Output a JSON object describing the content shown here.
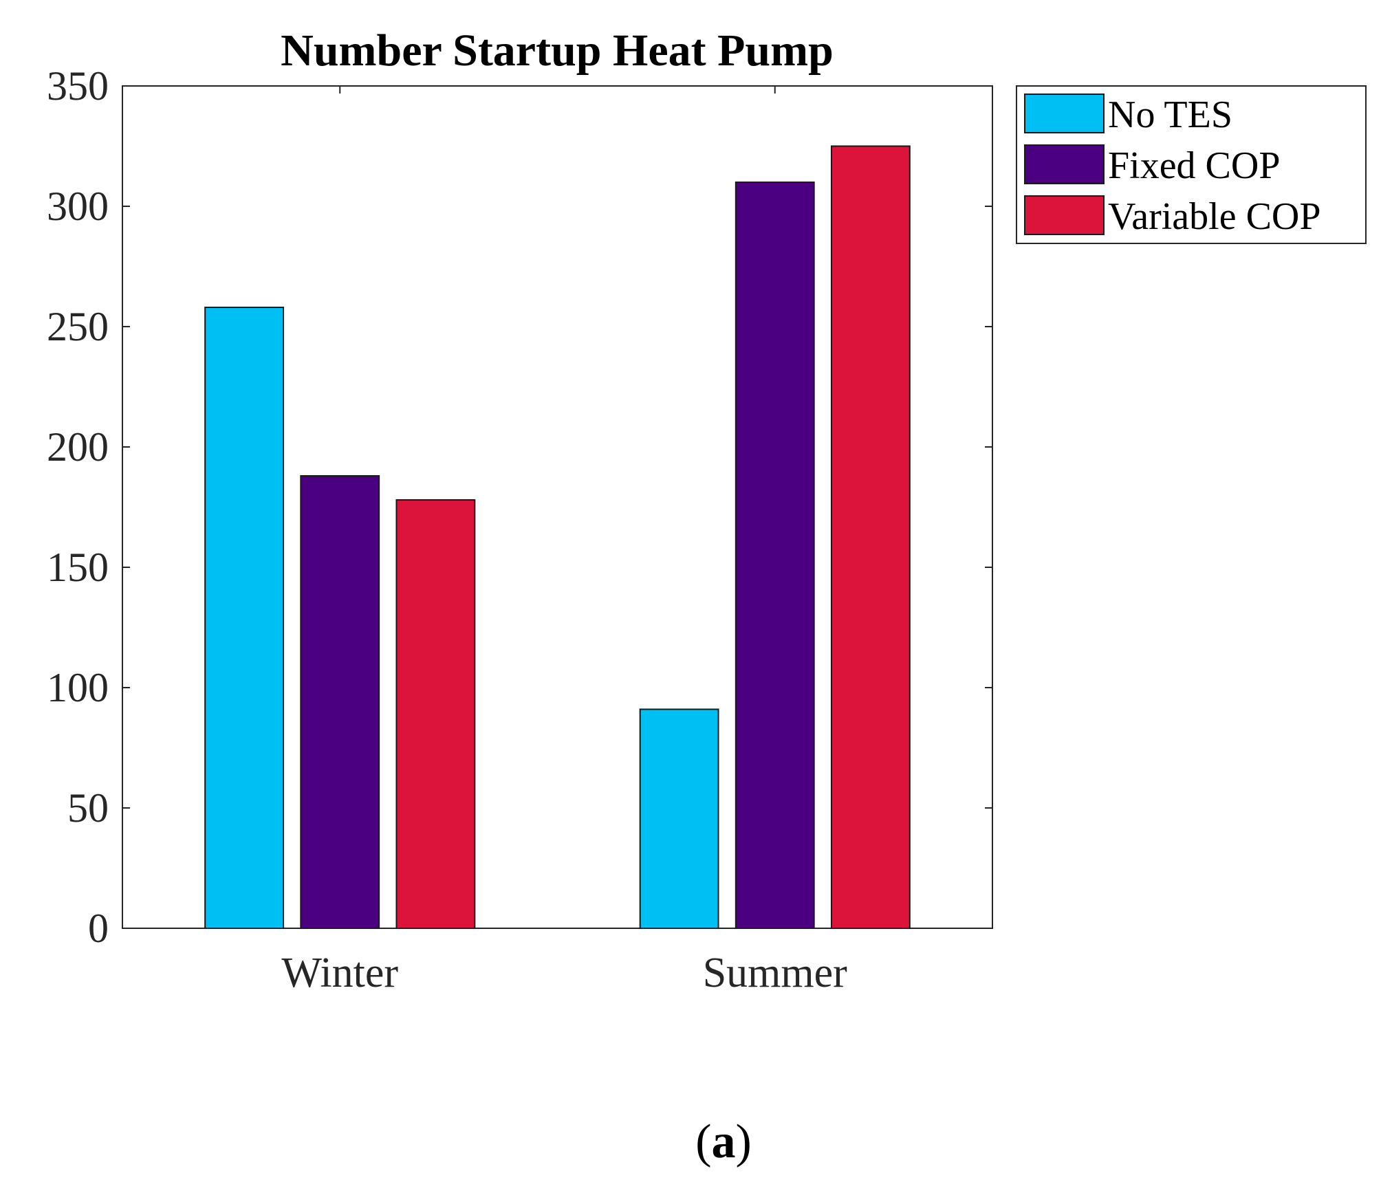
{
  "chart_data": {
    "type": "bar",
    "title": "Number Startup Heat Pump",
    "categories": [
      "Winter",
      "Summer"
    ],
    "series": [
      {
        "name": "No TES",
        "color": "#00BFF3",
        "values": [
          258,
          91
        ]
      },
      {
        "name": "Fixed COP",
        "color": "#4B0082",
        "values": [
          188,
          310
        ]
      },
      {
        "name": "Variable COP",
        "color": "#DC143C",
        "values": [
          178,
          325
        ]
      }
    ],
    "ylim": [
      0,
      350
    ],
    "yticks": [
      0,
      50,
      100,
      150,
      200,
      250,
      300,
      350
    ],
    "legend_position": "outside-top-right",
    "grid": false
  },
  "caption": {
    "open": "(",
    "letter": "a",
    "close": ")"
  }
}
